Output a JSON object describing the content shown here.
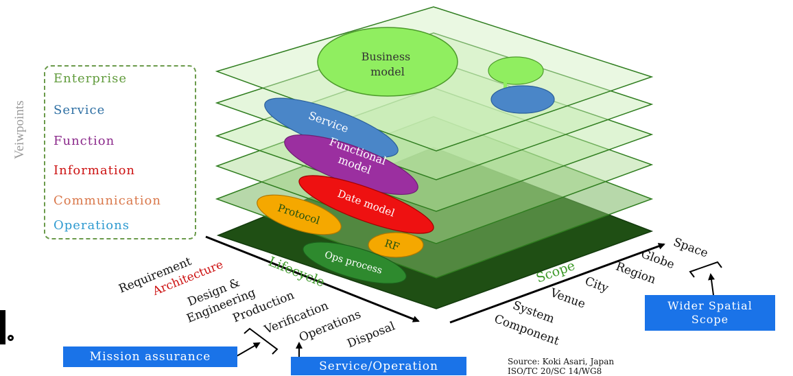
{
  "viewpoints": {
    "title": "Veiwpoints",
    "items": [
      {
        "label": "Enterprise",
        "color": "#5f9a3a"
      },
      {
        "label": "Service",
        "color": "#2e6fa3"
      },
      {
        "label": "Function",
        "color": "#8b2a8b"
      },
      {
        "label": "Information",
        "color": "#cc1111"
      },
      {
        "label": "Communication",
        "color": "#d9774a"
      },
      {
        "label": "Operations",
        "color": "#2e9ad0"
      }
    ]
  },
  "ellipses": {
    "business_model": "Business\nmodel",
    "service": "Service",
    "functional_model": "Functional\nmodel",
    "date_model": "Date model",
    "protocol": "Protocol",
    "rf": "RF",
    "ops_process": "Ops process"
  },
  "lifecycle": {
    "axis_label": "Lifecycle",
    "stages": [
      "Requirement",
      "Architecture",
      "Design &\nEngineering",
      "Production",
      "Verification",
      "Operations",
      "Disposal"
    ],
    "highlight_color": "#cc1111"
  },
  "scope": {
    "axis_label": "Scope",
    "levels": [
      "Component",
      "System",
      "Venue",
      "City",
      "Region",
      "Globe",
      "Space"
    ]
  },
  "callouts": {
    "mission_assurance": "Mission assurance",
    "service_operation": "Service/Operation",
    "wider_spatial_scope": "Wider Spatial\nScope"
  },
  "source": {
    "line1": "Source: Koki Asari, Japan",
    "line2": "ISO/TC 20/SC 14/WG8"
  },
  "colors": {
    "layer_fill": "#b8e6a0",
    "layer_stroke": "#2f7d1f",
    "base_layer": "#1f4f14",
    "business": "#90ee60",
    "service_blue": "#4a86c8",
    "function_purple": "#9b2fa0",
    "date_red": "#ee1111",
    "protocol_orange": "#f5a800",
    "ops_green": "#2e8a2e",
    "callout_blue": "#1a73e8"
  }
}
